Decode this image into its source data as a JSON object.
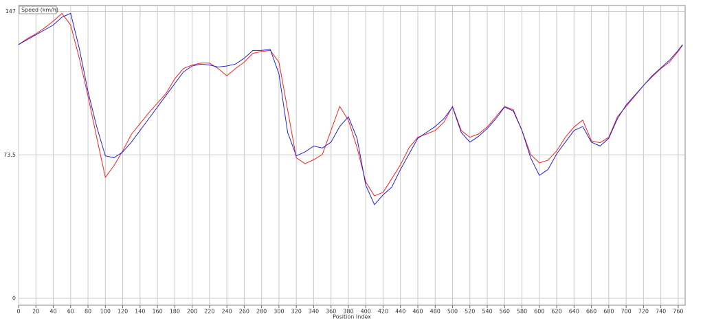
{
  "chart_data": {
    "type": "line",
    "y_label": "Speed (km/h)",
    "x_label": "Position Index",
    "x": [
      0,
      10,
      20,
      30,
      40,
      50,
      60,
      70,
      80,
      90,
      100,
      110,
      120,
      130,
      140,
      150,
      160,
      170,
      180,
      190,
      200,
      210,
      220,
      230,
      240,
      250,
      260,
      270,
      280,
      290,
      300,
      310,
      320,
      330,
      340,
      350,
      360,
      370,
      380,
      390,
      400,
      410,
      420,
      430,
      440,
      450,
      460,
      470,
      480,
      490,
      500,
      510,
      520,
      530,
      540,
      550,
      560,
      570,
      580,
      590,
      600,
      610,
      620,
      630,
      640,
      650,
      660,
      670,
      680,
      690,
      700,
      710,
      720,
      730,
      740,
      750,
      760,
      765
    ],
    "series": [
      {
        "color": "#ff2020",
        "values": [
          130,
          133,
          135.5,
          138.5,
          142,
          146,
          140,
          123,
          103.6,
          82.5,
          62,
          68,
          75.5,
          84,
          89.5,
          95,
          100,
          105,
          112.5,
          117.7,
          119.5,
          120.5,
          120.5,
          117.7,
          114,
          117.7,
          121,
          125.5,
          126.5,
          127,
          121,
          96.6,
          72,
          69,
          71,
          73.7,
          86,
          98.3,
          91.3,
          77.2,
          59.6,
          52.5,
          54.3,
          61.3,
          68.4,
          77.2,
          82.5,
          84.2,
          86,
          90.2,
          98.3,
          86,
          82.5,
          84.2,
          87.8,
          93,
          98.3,
          96.6,
          86,
          73.7,
          69.4,
          70.8,
          75.5,
          82.5,
          87.8,
          91.3,
          80.7,
          79.7,
          82.5,
          93,
          98.3,
          103.6,
          109,
          113.5,
          117.7,
          121,
          126.5,
          129.7
        ]
      },
      {
        "color": "#2020e0",
        "values": [
          130,
          132.5,
          135,
          137.5,
          140,
          144,
          146,
          128,
          106,
          88,
          73,
          72,
          75,
          80,
          86,
          92,
          98,
          104,
          110,
          116,
          119,
          120,
          119.5,
          118.5,
          119,
          120,
          123,
          127,
          127,
          127.5,
          115,
          85,
          73,
          75,
          78,
          77,
          80,
          88,
          93,
          82,
          58,
          48,
          53,
          57,
          66,
          74,
          82,
          85,
          88,
          92,
          98,
          85,
          80,
          83,
          87,
          92,
          98,
          96,
          86,
          72,
          63,
          66,
          74,
          80,
          86,
          88,
          80,
          78,
          82,
          92,
          99,
          104,
          109,
          114,
          118,
          122,
          127,
          130
        ]
      }
    ],
    "xlim": [
      0,
      768
    ],
    "ylim": [
      -3.5,
      150
    ],
    "xticks": [
      0,
      20,
      40,
      60,
      80,
      100,
      120,
      140,
      160,
      180,
      200,
      220,
      240,
      260,
      280,
      300,
      320,
      340,
      360,
      380,
      400,
      420,
      440,
      460,
      480,
      500,
      520,
      540,
      560,
      580,
      600,
      620,
      640,
      660,
      680,
      700,
      720,
      740,
      760
    ],
    "yticks": [
      0,
      73.5,
      147
    ],
    "grid": true
  }
}
